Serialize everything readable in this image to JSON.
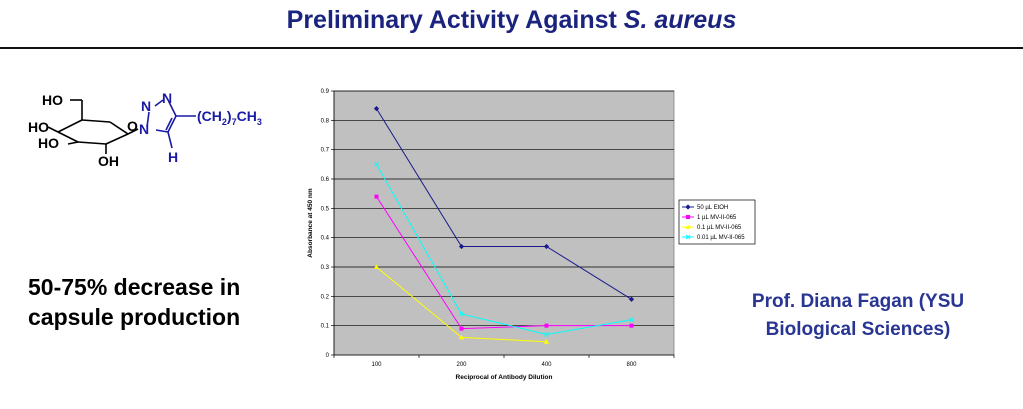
{
  "slide": {
    "title_main": "Preliminary Activity Against ",
    "title_italic": "S. aureus",
    "left_text": "50-75% decrease in capsule production",
    "right_text": "Prof. Diana Fagan (YSU Biological Sciences)"
  },
  "structure": {
    "labels": {
      "ho1": "HO",
      "ho2": "HO",
      "ho3": "HO",
      "oh": "OH",
      "ring_o": "O",
      "n1": "N",
      "n2": "N",
      "n3": "N",
      "h": "H",
      "chain": "(CH",
      "chain_sub": "2",
      "chain_sub2": ")",
      "chain_sub3": "7",
      "chain_end": "CH",
      "chain_end_sub": "3"
    },
    "colors": {
      "bonds": "#000000",
      "triazole": "#1a1aa6"
    }
  },
  "chart_data": {
    "type": "line",
    "x": [
      "100",
      "200",
      "400",
      "800"
    ],
    "xlabel": "Reciprocal of Antibody Dilution",
    "ylabel": "Absorbance at 450 nm",
    "ylim": [
      0,
      0.9
    ],
    "yticks": [
      "0",
      "0.1",
      "0.2",
      "0.3",
      "0.4",
      "0.5",
      "0.6",
      "0.7",
      "0.8",
      "0.9"
    ],
    "grid": true,
    "legend_position": "right",
    "plot_background": "#c0c0c0",
    "series": [
      {
        "name": "50 µL EtOH",
        "values": [
          0.84,
          0.37,
          0.37,
          0.19
        ],
        "color": "#1a1a8c",
        "marker": "diamond"
      },
      {
        "name": "1 µL MV-II-065",
        "values": [
          0.54,
          0.09,
          0.1,
          0.1
        ],
        "color": "#ff00ff",
        "marker": "square"
      },
      {
        "name": "0.1 µL MV-II-065",
        "values": [
          0.3,
          0.06,
          0.045,
          null
        ],
        "color": "#ffff00",
        "marker": "triangle"
      },
      {
        "name": "0.01 µL MV-II-065",
        "values": [
          0.65,
          0.14,
          0.07,
          0.12
        ],
        "color": "#00ffff",
        "marker": "x"
      }
    ]
  }
}
